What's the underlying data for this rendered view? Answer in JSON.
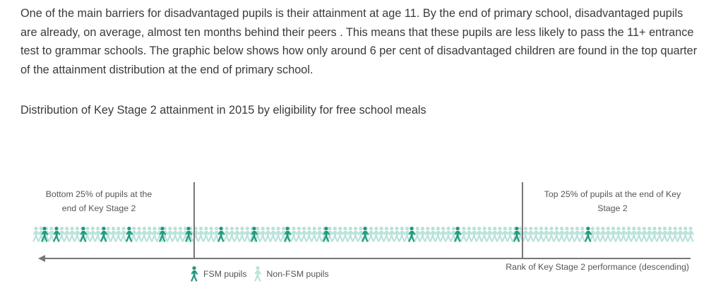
{
  "paragraph": "One of the main barriers for disadvantaged pupils is their attainment at age 11. By the end of primary school, disadvantaged pupils are already, on average, almost ten months behind their peers . This means that these pupils are less likely to pass the 11+ entrance test to grammar schools. The graphic below shows how only around 6 per cent of disadvantaged children are found in the top quarter of the attainment distribution at the end of primary school.",
  "caption": "Distribution of Key Stage 2 attainment in 2015 by eligibility for free school meals",
  "graphic": {
    "bottom_label": "Bottom 25% of pupils at the end of Key Stage 2",
    "top_label": "Top 25% of pupils at the end of Key Stage 2",
    "axis_label": "Rank of Key Stage 2 performance (descending)",
    "legend": {
      "fsm": "FSM pupils",
      "non_fsm": "Non-FSM pupils"
    },
    "icons": {
      "fsm": "walking-person-icon",
      "non_fsm": "walking-person-icon"
    },
    "colors": {
      "fsm": "#1e9a7c",
      "non_fsm": "#b8e2da",
      "lines": "#777777"
    }
  }
}
